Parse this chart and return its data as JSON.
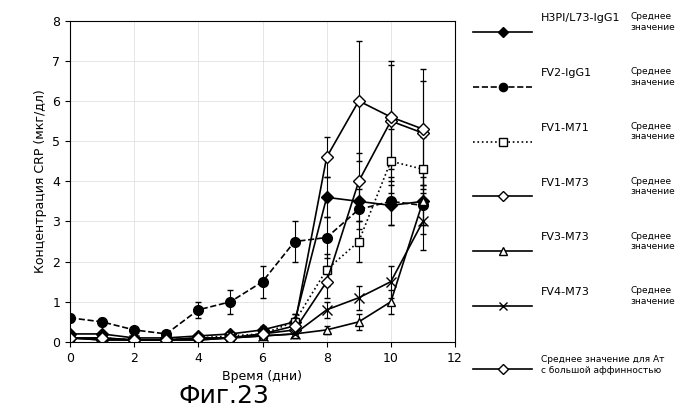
{
  "title": "Фиг.23",
  "ylabel": "Концентрация CRP (мкг/дл)",
  "xlabel": "Время (дни)",
  "xlim": [
    0,
    12
  ],
  "ylim": [
    0,
    8
  ],
  "xticks": [
    0,
    2,
    4,
    6,
    8,
    10,
    12
  ],
  "yticks": [
    0,
    1,
    2,
    3,
    4,
    5,
    6,
    7,
    8
  ],
  "series": [
    {
      "key": "H3PI_L73_IgG1",
      "label": "H3PI/L73-IgG1",
      "label2": "Среднее\nзначение",
      "x": [
        0,
        1,
        2,
        3,
        4,
        5,
        6,
        7,
        8,
        9,
        10,
        11
      ],
      "y": [
        0.2,
        0.2,
        0.1,
        0.1,
        0.15,
        0.2,
        0.3,
        0.5,
        3.6,
        3.5,
        3.4,
        3.5
      ],
      "yerr": [
        0.05,
        0.05,
        0.05,
        0.05,
        0.05,
        0.05,
        0.1,
        0.2,
        0.5,
        0.5,
        0.5,
        0.6
      ],
      "marker": "D",
      "markersize": 6,
      "markerfacecolor": "black",
      "markeredgecolor": "black",
      "color": "black",
      "linestyle": "-"
    },
    {
      "key": "FV2_IgG1",
      "label": "FV2-IgG1",
      "label2": "Среднее\nзначение",
      "x": [
        0,
        1,
        2,
        3,
        4,
        5,
        6,
        7,
        8,
        9,
        10,
        11
      ],
      "y": [
        0.6,
        0.5,
        0.3,
        0.2,
        0.8,
        1.0,
        1.5,
        2.5,
        2.6,
        3.3,
        3.5,
        3.4
      ],
      "yerr": [
        0.1,
        0.1,
        0.05,
        0.05,
        0.2,
        0.3,
        0.4,
        0.5,
        0.5,
        0.5,
        0.6,
        0.5
      ],
      "marker": "o",
      "markersize": 7,
      "markerfacecolor": "black",
      "markeredgecolor": "black",
      "color": "black",
      "linestyle": "--"
    },
    {
      "key": "FV1_M71",
      "label": "FV1-M71",
      "label2": "Среднее\nзначение",
      "x": [
        0,
        1,
        2,
        3,
        4,
        5,
        6,
        7,
        8,
        9,
        10,
        11
      ],
      "y": [
        0.1,
        0.1,
        0.05,
        0.05,
        0.1,
        0.15,
        0.2,
        0.5,
        1.8,
        2.5,
        4.5,
        4.3
      ],
      "yerr": [
        0.05,
        0.05,
        0.02,
        0.02,
        0.05,
        0.05,
        0.1,
        0.2,
        0.4,
        0.5,
        0.8,
        0.8
      ],
      "marker": "s",
      "markersize": 6,
      "markerfacecolor": "white",
      "markeredgecolor": "black",
      "color": "black",
      "linestyle": ":"
    },
    {
      "key": "FV1_M73",
      "label": "FV1-M73",
      "label2": "Среднее\nзначение",
      "x": [
        0,
        1,
        2,
        3,
        4,
        5,
        6,
        7,
        8,
        9,
        10,
        11
      ],
      "y": [
        0.1,
        0.05,
        0.05,
        0.05,
        0.1,
        0.1,
        0.2,
        0.3,
        1.5,
        4.0,
        5.5,
        5.2
      ],
      "yerr": [
        0.05,
        0.02,
        0.02,
        0.02,
        0.05,
        0.05,
        0.1,
        0.1,
        0.4,
        0.7,
        1.5,
        1.3
      ],
      "marker": "D",
      "markersize": 6,
      "markerfacecolor": "white",
      "markeredgecolor": "black",
      "color": "black",
      "linestyle": "-"
    },
    {
      "key": "FV3_M73",
      "label": "FV3-M73",
      "label2": "Среднее\nзначение",
      "x": [
        0,
        1,
        2,
        3,
        4,
        5,
        6,
        7,
        8,
        9,
        10,
        11
      ],
      "y": [
        0.1,
        0.1,
        0.05,
        0.05,
        0.05,
        0.1,
        0.15,
        0.2,
        0.3,
        0.5,
        1.0,
        3.5
      ],
      "yerr": [
        0.05,
        0.05,
        0.02,
        0.02,
        0.02,
        0.05,
        0.05,
        0.1,
        0.1,
        0.2,
        0.3,
        0.8
      ],
      "marker": "^",
      "markersize": 6,
      "markerfacecolor": "white",
      "markeredgecolor": "black",
      "color": "black",
      "linestyle": "-"
    },
    {
      "key": "FV4_M73",
      "label": "FV4-M73",
      "label2": "Среднее\nзначение",
      "x": [
        0,
        1,
        2,
        3,
        4,
        5,
        6,
        7,
        8,
        9,
        10,
        11
      ],
      "y": [
        0.1,
        0.05,
        0.05,
        0.05,
        0.05,
        0.1,
        0.15,
        0.2,
        0.8,
        1.1,
        1.5,
        3.0
      ],
      "yerr": [
        0.05,
        0.02,
        0.02,
        0.02,
        0.02,
        0.05,
        0.05,
        0.1,
        0.2,
        0.3,
        0.4,
        0.7
      ],
      "marker": "x",
      "markersize": 7,
      "markerfacecolor": "black",
      "markeredgecolor": "black",
      "color": "black",
      "linestyle": "-"
    },
    {
      "key": "high_affinity",
      "label": "Среднее значение для Ат\nс большой аффинностью",
      "label2": "",
      "x": [
        0,
        1,
        2,
        3,
        4,
        5,
        6,
        7,
        8,
        9,
        10,
        11
      ],
      "y": [
        0.1,
        0.1,
        0.05,
        0.05,
        0.1,
        0.1,
        0.2,
        0.4,
        4.6,
        6.0,
        5.6,
        5.3
      ],
      "yerr": [
        0.05,
        0.05,
        0.02,
        0.02,
        0.05,
        0.05,
        0.1,
        0.2,
        0.5,
        1.5,
        1.3,
        1.5
      ],
      "marker": "D",
      "markersize": 6,
      "markerfacecolor": "white",
      "markeredgecolor": "black",
      "color": "black",
      "linestyle": "-"
    }
  ],
  "legend_fontsize": 7,
  "label_fontsize": 9,
  "tick_fontsize": 9,
  "title_fontsize": 18
}
